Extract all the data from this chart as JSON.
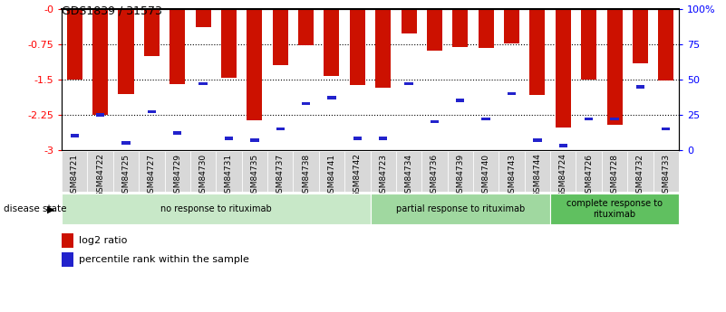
{
  "title": "GDS1839 / 31573",
  "samples": [
    "GSM84721",
    "GSM84722",
    "GSM84725",
    "GSM84727",
    "GSM84729",
    "GSM84730",
    "GSM84731",
    "GSM84735",
    "GSM84737",
    "GSM84738",
    "GSM84741",
    "GSM84742",
    "GSM84723",
    "GSM84734",
    "GSM84736",
    "GSM84739",
    "GSM84740",
    "GSM84743",
    "GSM84744",
    "GSM84724",
    "GSM84726",
    "GSM84728",
    "GSM84732",
    "GSM84733"
  ],
  "log2_ratio": [
    -1.5,
    -2.25,
    -1.8,
    -1.0,
    -1.6,
    -0.38,
    -1.47,
    -2.37,
    -1.2,
    -0.76,
    -1.43,
    -1.62,
    -1.67,
    -0.52,
    -0.88,
    -0.8,
    -0.83,
    -0.72,
    -1.82,
    -2.52,
    -1.5,
    -2.47,
    -1.15,
    -1.52
  ],
  "percentile": [
    10,
    25,
    5,
    27,
    12,
    47,
    8,
    7,
    15,
    33,
    37,
    8,
    8,
    47,
    20,
    35,
    22,
    40,
    7,
    3,
    22,
    22,
    45,
    15
  ],
  "groups": [
    {
      "label": "no response to rituximab",
      "start": 0,
      "end": 12,
      "color": "#c8e8c8"
    },
    {
      "label": "partial response to rituximab",
      "start": 12,
      "end": 19,
      "color": "#a0d8a0"
    },
    {
      "label": "complete response to\nrituximab",
      "start": 19,
      "end": 24,
      "color": "#60c060"
    }
  ],
  "bar_color": "#cc1100",
  "pct_color": "#2222cc",
  "ylim_left": [
    -3.0,
    0.0
  ],
  "background_color": "#ffffff",
  "plot_bg": "#ffffff",
  "ticklabel_bg": "#d8d8d8"
}
